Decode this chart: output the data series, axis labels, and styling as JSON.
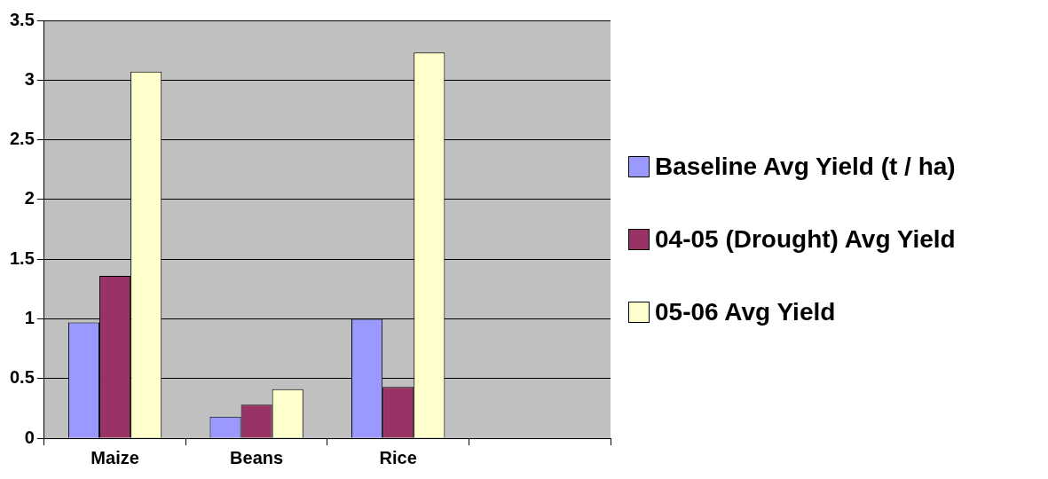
{
  "chart_data": {
    "type": "bar",
    "categories": [
      "Maize",
      "Beans",
      "Rice",
      null
    ],
    "series": [
      {
        "name": "Baseline Avg Yield (t / ha)",
        "color": "#9999ff",
        "values": [
          0.97,
          0.18,
          1.0,
          null
        ]
      },
      {
        "name": "04-05 (Drought) Avg Yield",
        "color": "#993366",
        "values": [
          1.36,
          0.28,
          0.43,
          null
        ]
      },
      {
        "name": "05-06 Avg Yield",
        "color": "#ffffcc",
        "values": [
          3.07,
          0.41,
          3.23,
          null
        ]
      }
    ],
    "ylim": [
      0,
      3.5
    ],
    "yticks": [
      0,
      0.5,
      1,
      1.5,
      2,
      2.5,
      3,
      3.5
    ],
    "grid": "y",
    "legend": "right"
  }
}
